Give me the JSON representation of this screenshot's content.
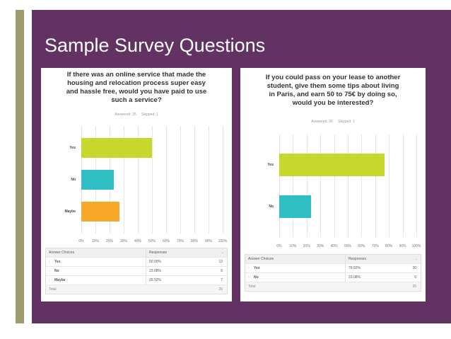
{
  "slide": {
    "title": "Sample Survey Questions",
    "colors": {
      "background": "#623262",
      "accent_bar": "#9c9c6c"
    }
  },
  "surveys": [
    {
      "question_lines": [
        "If there was an online service that made the",
        "housing and relocation process super easy",
        "and hassle free, would you have paid to use",
        "such a service?"
      ],
      "answered": "Answered: 26",
      "skipped": "Skipped: 1",
      "table": {
        "headers": [
          "Answer Choices",
          "Responses"
        ],
        "rows": [
          {
            "choice": "Yes",
            "percent": "50.00%",
            "count": "13"
          },
          {
            "choice": "No",
            "percent": "23.08%",
            "count": "6"
          },
          {
            "choice": "Maybe",
            "percent": "26.92%",
            "count": "7"
          }
        ],
        "total_label": "Total",
        "total": "26"
      }
    },
    {
      "question_lines": [
        "If you could pass on your lease to another",
        "student, give them some tips about living",
        "in Paris, and earn 50 to 75€ by doing so,",
        "would you be interested?"
      ],
      "answered": "Answered: 26",
      "skipped": "Skipped: 1",
      "table": {
        "headers": [
          "Answer Choices",
          "Responses"
        ],
        "rows": [
          {
            "choice": "Yes",
            "percent": "76.92%",
            "count": "20"
          },
          {
            "choice": "No",
            "percent": "23.08%",
            "count": "6"
          }
        ],
        "total_label": "Total",
        "total": "26"
      }
    }
  ],
  "chart_data": [
    {
      "type": "bar",
      "orientation": "horizontal",
      "title": "If there was an online service that made the housing and relocation process super easy and hassle free, would you have paid to use such a service?",
      "categories": [
        "Yes",
        "No",
        "Maybe"
      ],
      "values": [
        50,
        23.08,
        26.92
      ],
      "colors": [
        "#c8d72e",
        "#2fbfc4",
        "#f7a829"
      ],
      "x_ticks": [
        "0%",
        "10%",
        "20%",
        "30%",
        "40%",
        "50%",
        "60%",
        "70%",
        "80%",
        "90%",
        "100%"
      ],
      "xlim": [
        0,
        100
      ]
    },
    {
      "type": "bar",
      "orientation": "horizontal",
      "title": "If you could pass on your lease to another student, give them some tips about living in Paris, and earn 50 to 75€ by doing so, would you be interested?",
      "categories": [
        "Yes",
        "No"
      ],
      "values": [
        76.92,
        23.08
      ],
      "colors": [
        "#c8d72e",
        "#2fbfc4"
      ],
      "x_ticks": [
        "0%",
        "10%",
        "20%",
        "30%",
        "40%",
        "50%",
        "60%",
        "70%",
        "80%",
        "90%",
        "100%"
      ],
      "xlim": [
        0,
        100
      ]
    }
  ]
}
